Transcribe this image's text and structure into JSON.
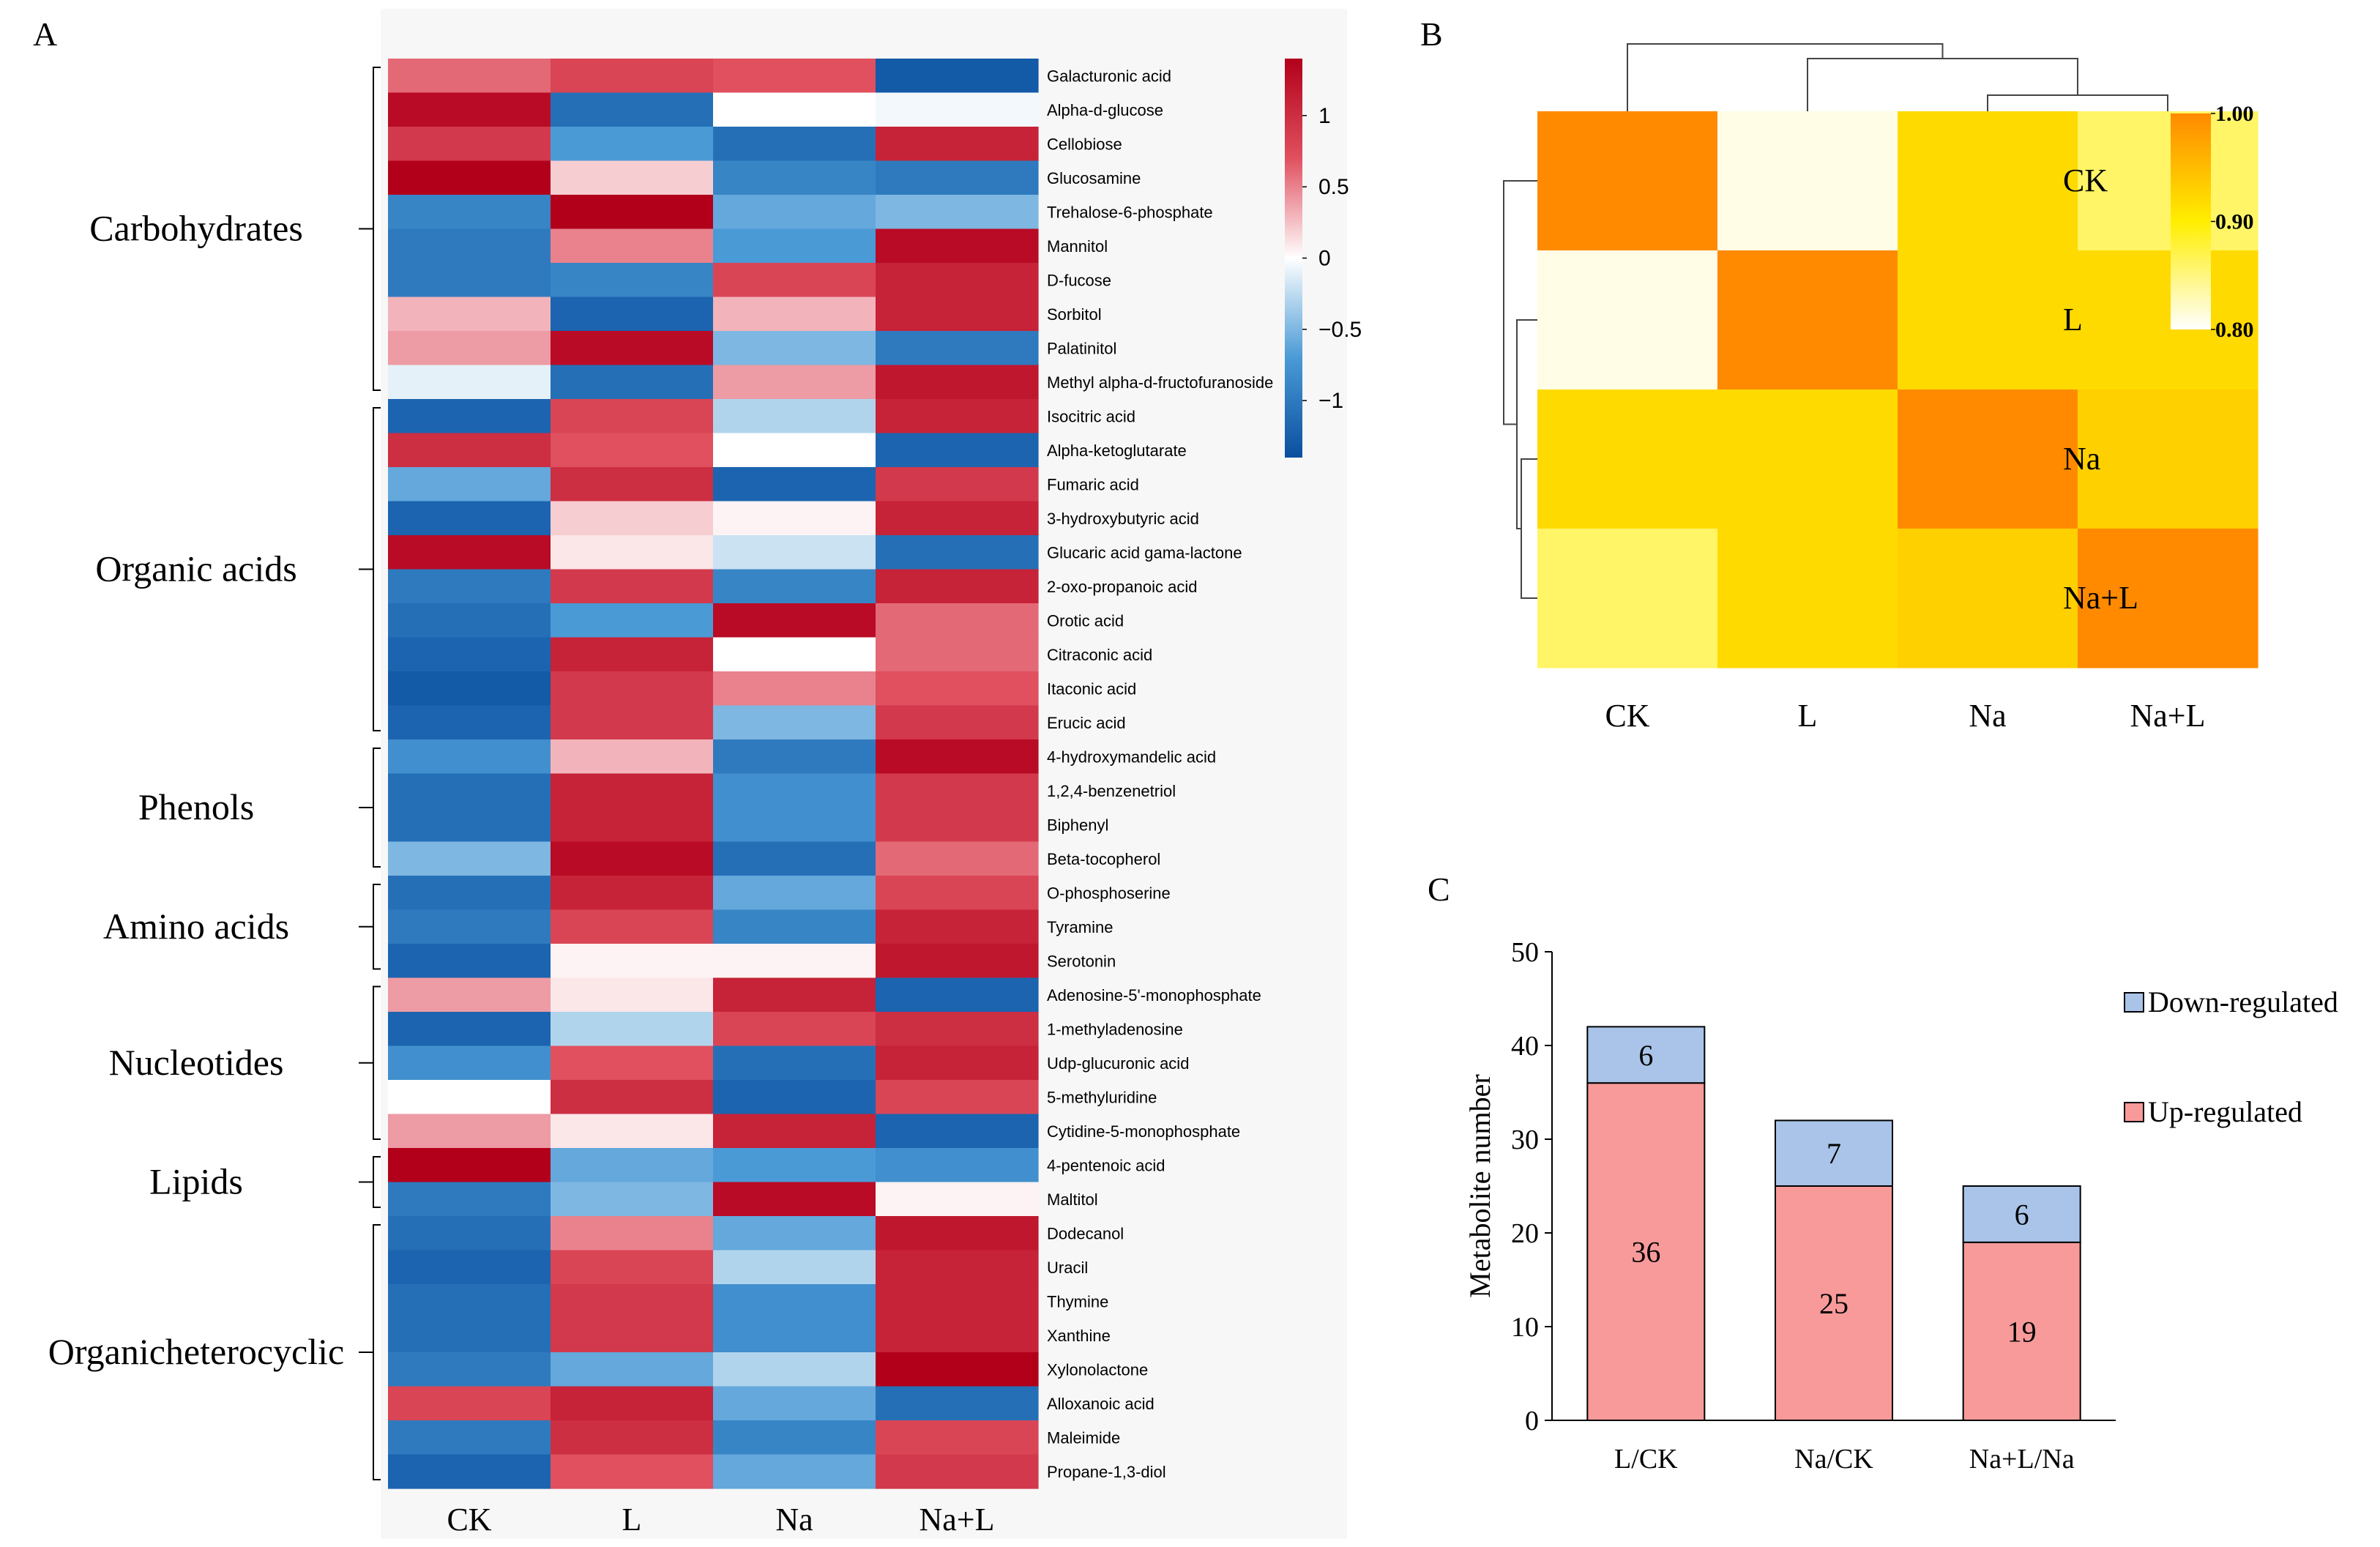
{
  "chart_data": [
    {
      "panel": "A",
      "type": "heatmap",
      "columns": [
        "CK",
        "L",
        "Na",
        "Na+L"
      ],
      "colorbar": {
        "ticks": [
          1,
          0.5,
          0,
          -0.5,
          -1
        ],
        "tick_labels": [
          "1",
          "0.5",
          "0",
          "−0.5",
          "−1"
        ],
        "range": [
          -1.4,
          1.4
        ]
      },
      "categories": [
        {
          "name": "Carbohydrates",
          "start": 0,
          "end": 9
        },
        {
          "name": "Organic acids",
          "start": 10,
          "end": 19
        },
        {
          "name": "Phenols",
          "start": 20,
          "end": 23
        },
        {
          "name": "Amino acids",
          "start": 24,
          "end": 26
        },
        {
          "name": "Nucleotides",
          "start": 27,
          "end": 31
        },
        {
          "name": "Lipids",
          "start": 32,
          "end": 33
        },
        {
          "name": "Organicheterocyclic",
          "start": 34,
          "end": 41
        }
      ],
      "rows": [
        {
          "name": "Galacturonic acid",
          "values": [
            0.6,
            0.8,
            0.7,
            -1.3
          ]
        },
        {
          "name": "Alpha-d-glucose",
          "values": [
            1.3,
            -1.1,
            0.0,
            -0.05
          ]
        },
        {
          "name": "Cellobiose",
          "values": [
            0.9,
            -0.7,
            -1.1,
            1.1
          ]
        },
        {
          "name": "Glucosamine",
          "values": [
            1.4,
            0.2,
            -0.9,
            -1.0
          ]
        },
        {
          "name": "Trehalose-6-phosphate",
          "values": [
            -0.9,
            1.4,
            -0.6,
            -0.5
          ]
        },
        {
          "name": "Mannitol",
          "values": [
            -1.0,
            0.5,
            -0.7,
            1.3
          ]
        },
        {
          "name": "D-fucose",
          "values": [
            -1.0,
            -0.9,
            0.8,
            1.1
          ]
        },
        {
          "name": "Sorbitol",
          "values": [
            0.3,
            -1.2,
            0.3,
            1.1
          ]
        },
        {
          "name": "Palatinitol",
          "values": [
            0.4,
            1.3,
            -0.5,
            -1.0
          ]
        },
        {
          "name": "Methyl alpha-d-fructofuranoside",
          "values": [
            -0.1,
            -1.1,
            0.4,
            1.2
          ]
        },
        {
          "name": "Isocitric acid",
          "values": [
            -1.2,
            0.8,
            -0.3,
            1.1
          ]
        },
        {
          "name": "Alpha-ketoglutarate",
          "values": [
            1.0,
            0.7,
            0.0,
            -1.2
          ]
        },
        {
          "name": "Fumaric acid",
          "values": [
            -0.6,
            1.0,
            -1.2,
            0.9
          ]
        },
        {
          "name": "3-hydroxybutyric acid",
          "values": [
            -1.2,
            0.2,
            0.05,
            1.1
          ]
        },
        {
          "name": "Glucaric acid gama-lactone",
          "values": [
            1.3,
            0.1,
            -0.2,
            -1.1
          ]
        },
        {
          "name": "2-oxo-propanoic acid",
          "values": [
            -1.0,
            0.9,
            -0.9,
            1.1
          ]
        },
        {
          "name": "Orotic acid",
          "values": [
            -1.1,
            -0.7,
            1.3,
            0.6
          ]
        },
        {
          "name": "Citraconic acid",
          "values": [
            -1.2,
            1.1,
            0.0,
            0.6
          ]
        },
        {
          "name": "Itaconic acid",
          "values": [
            -1.3,
            0.9,
            0.5,
            0.7
          ]
        },
        {
          "name": "Erucic acid",
          "values": [
            -1.2,
            0.9,
            -0.5,
            0.9
          ]
        },
        {
          "name": "4-hydroxymandelic acid",
          "values": [
            -0.8,
            0.3,
            -1.0,
            1.3
          ]
        },
        {
          "name": "1,2,4-benzenetriol",
          "values": [
            -1.1,
            1.1,
            -0.8,
            0.9
          ]
        },
        {
          "name": "Biphenyl",
          "values": [
            -1.1,
            1.1,
            -0.8,
            0.9
          ]
        },
        {
          "name": "Beta-tocopherol",
          "values": [
            -0.5,
            1.3,
            -1.1,
            0.6
          ]
        },
        {
          "name": "O-phosphoserine",
          "values": [
            -1.1,
            1.1,
            -0.6,
            0.8
          ]
        },
        {
          "name": "Tyramine",
          "values": [
            -1.0,
            0.8,
            -0.9,
            1.1
          ]
        },
        {
          "name": "Serotonin",
          "values": [
            -1.2,
            0.05,
            0.05,
            1.2
          ]
        },
        {
          "name": "Adenosine-5'-monophosphate",
          "values": [
            0.4,
            0.1,
            1.1,
            -1.2
          ]
        },
        {
          "name": "1-methyladenosine",
          "values": [
            -1.2,
            -0.3,
            0.8,
            1.0
          ]
        },
        {
          "name": "Udp-glucuronic acid",
          "values": [
            -0.8,
            0.7,
            -1.1,
            1.1
          ]
        },
        {
          "name": "5-methyluridine",
          "values": [
            0.0,
            1.0,
            -1.2,
            0.8
          ]
        },
        {
          "name": "Cytidine-5-monophosphate",
          "values": [
            0.4,
            0.1,
            1.1,
            -1.2
          ]
        },
        {
          "name": "4-pentenoic acid",
          "values": [
            1.4,
            -0.6,
            -0.7,
            -0.8
          ]
        },
        {
          "name": "Maltitol",
          "values": [
            -1.0,
            -0.5,
            1.3,
            0.05
          ]
        },
        {
          "name": "Dodecanol",
          "values": [
            -1.1,
            0.5,
            -0.6,
            1.2
          ]
        },
        {
          "name": "Uracil",
          "values": [
            -1.2,
            0.8,
            -0.3,
            1.1
          ]
        },
        {
          "name": "Thymine",
          "values": [
            -1.1,
            0.9,
            -0.8,
            1.1
          ]
        },
        {
          "name": "Xanthine",
          "values": [
            -1.1,
            0.9,
            -0.8,
            1.1
          ]
        },
        {
          "name": "Xylonolactone",
          "values": [
            -1.0,
            -0.6,
            -0.3,
            1.4
          ]
        },
        {
          "name": "Alloxanoic acid",
          "values": [
            0.8,
            1.1,
            -0.6,
            -1.1
          ]
        },
        {
          "name": "Maleimide",
          "values": [
            -1.0,
            1.0,
            -0.9,
            0.8
          ]
        },
        {
          "name": "Propane-1,3-diol",
          "values": [
            -1.2,
            0.7,
            -0.6,
            0.9
          ]
        }
      ]
    },
    {
      "panel": "B",
      "type": "heatmap",
      "subtype": "correlation",
      "labels": [
        "CK",
        "L",
        "Na",
        "Na+L"
      ],
      "matrix": [
        [
          1.0,
          0.81,
          0.92,
          0.86
        ],
        [
          0.81,
          1.0,
          0.92,
          0.92
        ],
        [
          0.92,
          0.92,
          1.0,
          0.93
        ],
        [
          0.86,
          0.92,
          0.93,
          1.0
        ]
      ],
      "colorbar": {
        "range": [
          0.8,
          1.0
        ],
        "tick_labels": [
          "1.00",
          "0.90",
          "0.80"
        ]
      }
    },
    {
      "panel": "C",
      "type": "bar",
      "stacked": true,
      "categories": [
        "L/CK",
        "Na/CK",
        "Na+L/Na"
      ],
      "series": [
        {
          "name": "Up-regulated",
          "values": [
            36,
            25,
            19
          ],
          "color": "#f89a9a"
        },
        {
          "name": "Down-regulated",
          "values": [
            6,
            7,
            6
          ],
          "color": "#a9c4e8"
        }
      ],
      "ylabel": "Metabolite number",
      "ylim": [
        0,
        50
      ],
      "yticks": [
        0,
        10,
        20,
        30,
        40,
        50
      ],
      "legend_order": [
        "Down-regulated",
        "Up-regulated"
      ],
      "legend": "right"
    }
  ]
}
